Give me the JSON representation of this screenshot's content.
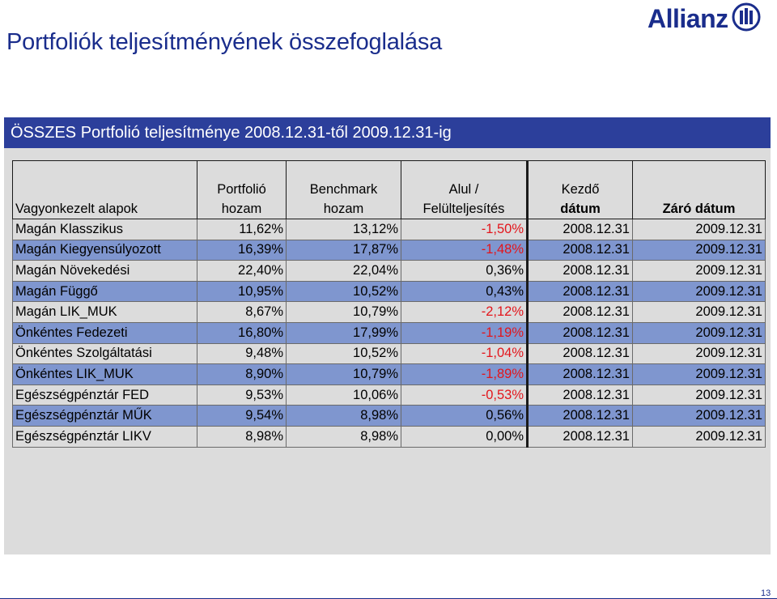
{
  "slide": {
    "title": "Portfoliók teljesítményének összefoglalása",
    "page_number": "13",
    "logo_text": "Allianz",
    "logo_icon": "allianz-eagle-icon",
    "accent_color": "#1a2d8c"
  },
  "banner": {
    "text": "ÖSSZES Portfolió teljesítménye 2008.12.31-től 2009.12.31-ig",
    "color": "#2c3f9b"
  },
  "table": {
    "headers": [
      {
        "line1": "",
        "line2": "Vagyonkezelt alapok"
      },
      {
        "line1": "Portfolió",
        "line2": "hozam"
      },
      {
        "line1": "Benchmark",
        "line2": "hozam"
      },
      {
        "line1": "Alul /",
        "line2": "Felülteljesítés"
      },
      {
        "line1": "Kezdő",
        "line2": "dátum"
      },
      {
        "line1": "",
        "line2": "Záró dátum"
      }
    ],
    "rows": [
      {
        "name": "Magán Klasszikus",
        "portfolio": "11,62%",
        "benchmark": "13,12%",
        "diff": "-1,50%",
        "start": "2008.12.31",
        "end": "2009.12.31"
      },
      {
        "name": "Magán Kiegyensúlyozott",
        "portfolio": "16,39%",
        "benchmark": "17,87%",
        "diff": "-1,48%",
        "start": "2008.12.31",
        "end": "2009.12.31"
      },
      {
        "name": "Magán Növekedési",
        "portfolio": "22,40%",
        "benchmark": "22,04%",
        "diff": "0,36%",
        "start": "2008.12.31",
        "end": "2009.12.31"
      },
      {
        "name": "Magán Függő",
        "portfolio": "10,95%",
        "benchmark": "10,52%",
        "diff": "0,43%",
        "start": "2008.12.31",
        "end": "2009.12.31"
      },
      {
        "name": "Magán LIK_MUK",
        "portfolio": "8,67%",
        "benchmark": "10,79%",
        "diff": "-2,12%",
        "start": "2008.12.31",
        "end": "2009.12.31"
      },
      {
        "name": "Önkéntes Fedezeti",
        "portfolio": "16,80%",
        "benchmark": "17,99%",
        "diff": "-1,19%",
        "start": "2008.12.31",
        "end": "2009.12.31"
      },
      {
        "name": "Önkéntes Szolgáltatási",
        "portfolio": "9,48%",
        "benchmark": "10,52%",
        "diff": "-1,04%",
        "start": "2008.12.31",
        "end": "2009.12.31"
      },
      {
        "name": "Önkéntes LIK_MUK",
        "portfolio": "8,90%",
        "benchmark": "10,79%",
        "diff": "-1,89%",
        "start": "2008.12.31",
        "end": "2009.12.31"
      },
      {
        "name": "Egészségpénztár FED",
        "portfolio": "9,53%",
        "benchmark": "10,06%",
        "diff": "-0,53%",
        "start": "2008.12.31",
        "end": "2009.12.31"
      },
      {
        "name": "Egészségpénztár MŰK",
        "portfolio": "9,54%",
        "benchmark": "8,98%",
        "diff": "0,56%",
        "start": "2008.12.31",
        "end": "2009.12.31"
      },
      {
        "name": "Egészségpénztár LIKV",
        "portfolio": "8,98%",
        "benchmark": "8,98%",
        "diff": "0,00%",
        "start": "2008.12.31",
        "end": "2009.12.31"
      }
    ],
    "row_colors": {
      "shaded": "#7f96cf",
      "plain": "#dcdcdc"
    },
    "negative_color": "#e3151b"
  }
}
